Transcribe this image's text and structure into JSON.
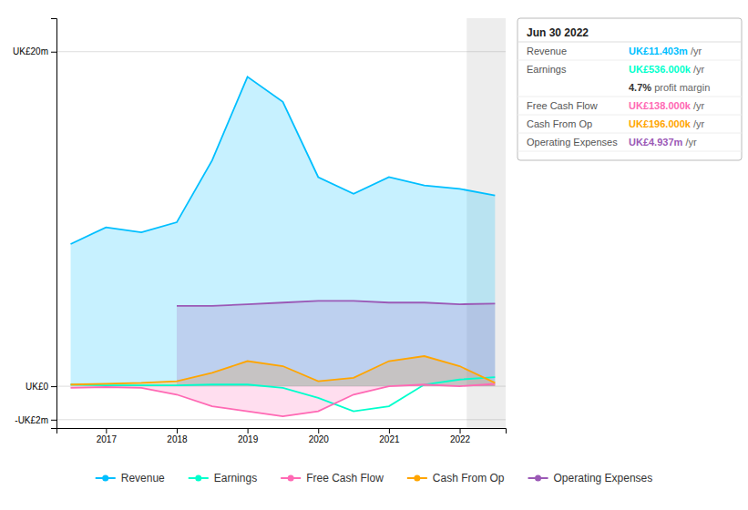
{
  "chart_data": {
    "type": "area",
    "x": [
      2016.5,
      2017.0,
      2017.5,
      2018.0,
      2018.5,
      2019.0,
      2019.5,
      2020.0,
      2020.5,
      2021.0,
      2021.5,
      2022.0,
      2022.5
    ],
    "series": [
      {
        "name": "Revenue",
        "type": "area",
        "color": "#00bfff",
        "values": [
          8.5,
          9.5,
          9.2,
          9.8,
          13.5,
          18.5,
          17.0,
          12.5,
          11.5,
          12.5,
          12.0,
          11.8,
          11.4
        ]
      },
      {
        "name": "Earnings",
        "type": "line",
        "color": "#00ffcc",
        "values": [
          0.1,
          0.05,
          0.05,
          0.05,
          0.1,
          0.1,
          -0.1,
          -0.7,
          -1.5,
          -1.2,
          0.1,
          0.4,
          0.54
        ]
      },
      {
        "name": "Free Cash Flow",
        "type": "area",
        "color": "#ff69b4",
        "values": [
          -0.1,
          -0.05,
          -0.1,
          -0.5,
          -1.2,
          -1.5,
          -1.8,
          -1.5,
          -0.5,
          0.0,
          0.1,
          0.0,
          0.14
        ]
      },
      {
        "name": "Cash From Op",
        "type": "area",
        "color": "#ffa500",
        "values": [
          0.1,
          0.15,
          0.2,
          0.3,
          0.8,
          1.5,
          1.2,
          0.3,
          0.5,
          1.5,
          1.8,
          1.2,
          0.2
        ]
      },
      {
        "name": "Operating Expenses",
        "type": "area",
        "color": "#9b59b6",
        "values": [
          null,
          null,
          null,
          4.8,
          4.8,
          4.9,
          5.0,
          5.1,
          5.1,
          5.0,
          5.0,
          4.9,
          4.94
        ]
      }
    ],
    "xlim": [
      2016.3,
      2022.65
    ],
    "xticks": [
      2017,
      2018,
      2019,
      2020,
      2021,
      2022
    ],
    "ylim": [
      -2.5,
      22
    ],
    "yticks": [
      {
        "value": 20,
        "label": "UK£20m"
      },
      {
        "value": 0,
        "label": "UK£0"
      },
      {
        "value": -2,
        "label": "-UK£2m"
      }
    ],
    "grid": true,
    "legend": "bottom",
    "shaded_x": [
      2022.1,
      2022.65
    ],
    "annotation": {
      "title": "Jun 30 2022",
      "rows": [
        {
          "label": "Revenue",
          "value": "UK£11.403m",
          "unit": " /yr"
        },
        {
          "label": "Earnings",
          "value": "UK£536.000k",
          "unit": " /yr",
          "note_value": "4.7%",
          "note_text": " profit margin"
        },
        {
          "label": "Free Cash Flow",
          "value": "UK£138.000k",
          "unit": " /yr"
        },
        {
          "label": "Cash From Op",
          "value": "UK£196.000k",
          "unit": " /yr"
        },
        {
          "label": "Operating Expenses",
          "value": "UK£4.937m",
          "unit": " /yr"
        }
      ]
    }
  }
}
